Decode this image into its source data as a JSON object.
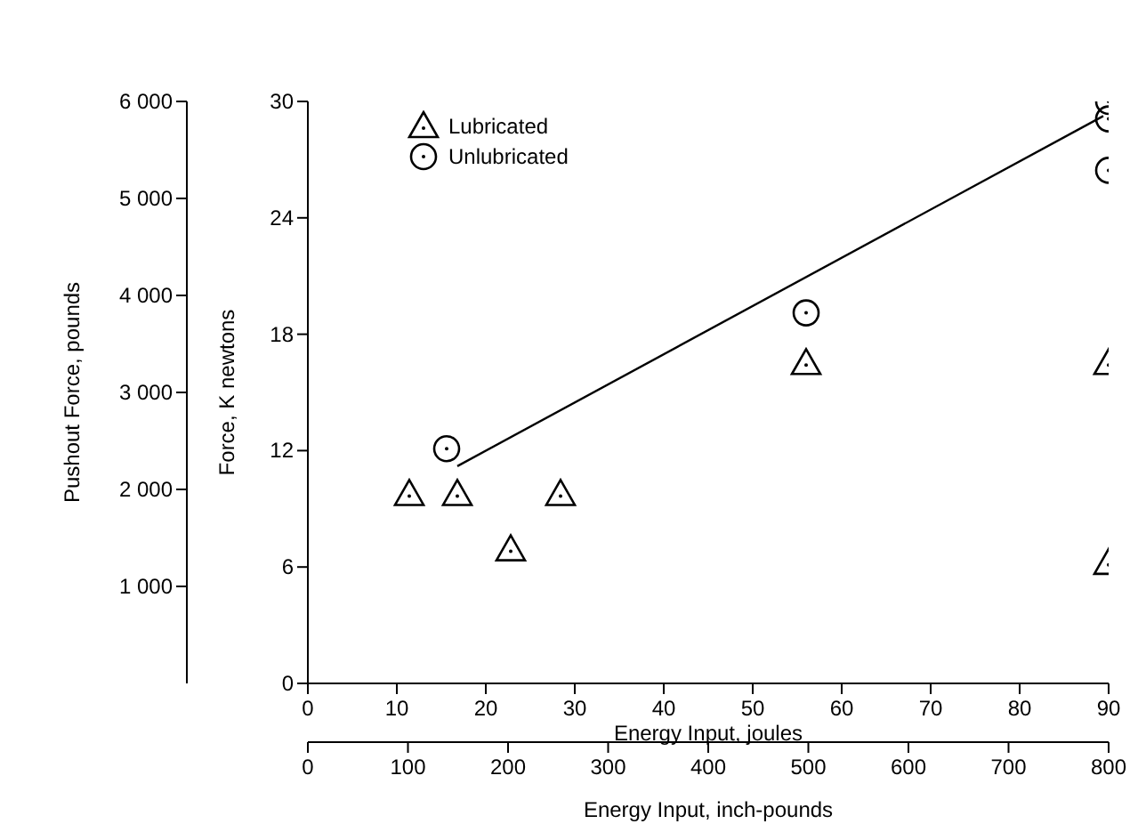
{
  "chart_data": {
    "type": "scatter",
    "xlabel": "Energy Input, joules",
    "y2label": "Pushout Force, pounds",
    "ylabel": "Force, K newtons",
    "x2label": "Energy Input, inch-pounds",
    "xlim": [
      0,
      90
    ],
    "xticks": [
      0,
      10,
      20,
      30,
      40,
      50,
      60,
      70,
      80,
      90
    ],
    "x2lim": [
      0,
      800
    ],
    "x2ticks": [
      0,
      100,
      200,
      300,
      400,
      500,
      600,
      700,
      800
    ],
    "y2lim": [
      0,
      6000
    ],
    "y2ticks": [
      {
        "value": 1000,
        "label": "1 000"
      },
      {
        "value": 2000,
        "label": "2 000"
      },
      {
        "value": 3000,
        "label": "3 000"
      },
      {
        "value": 4000,
        "label": "4 000"
      },
      {
        "value": 5000,
        "label": "5 000"
      },
      {
        "value": 6000,
        "label": "6 000"
      }
    ],
    "ylim": [
      0,
      30
    ],
    "yticks": [
      0,
      6,
      12,
      18,
      24,
      30
    ],
    "legend": "top left",
    "grid": false,
    "series": [
      {
        "name": "Lubricated",
        "axis": "y2",
        "marker": "triangle",
        "color": "#000000",
        "x": [
          11.4,
          16.8,
          22.8,
          28.4,
          56,
          90,
          90
        ],
        "values": [
          1950,
          1950,
          1380,
          1950,
          3300,
          3300,
          1240
        ]
      },
      {
        "name": "Unlubricated",
        "axis": "y2",
        "marker": "circle",
        "color": "#000000",
        "x": [
          15.6,
          56,
          90,
          90,
          90
        ],
        "values": [
          2420,
          3820,
          5290,
          5820,
          6000
        ]
      },
      {
        "type": "line",
        "axis": "y2",
        "color": "#000000",
        "line_style": "solid",
        "marker": "none",
        "x": [
          16.8,
          89.4
        ],
        "values": [
          2240,
          5850
        ]
      }
    ]
  }
}
